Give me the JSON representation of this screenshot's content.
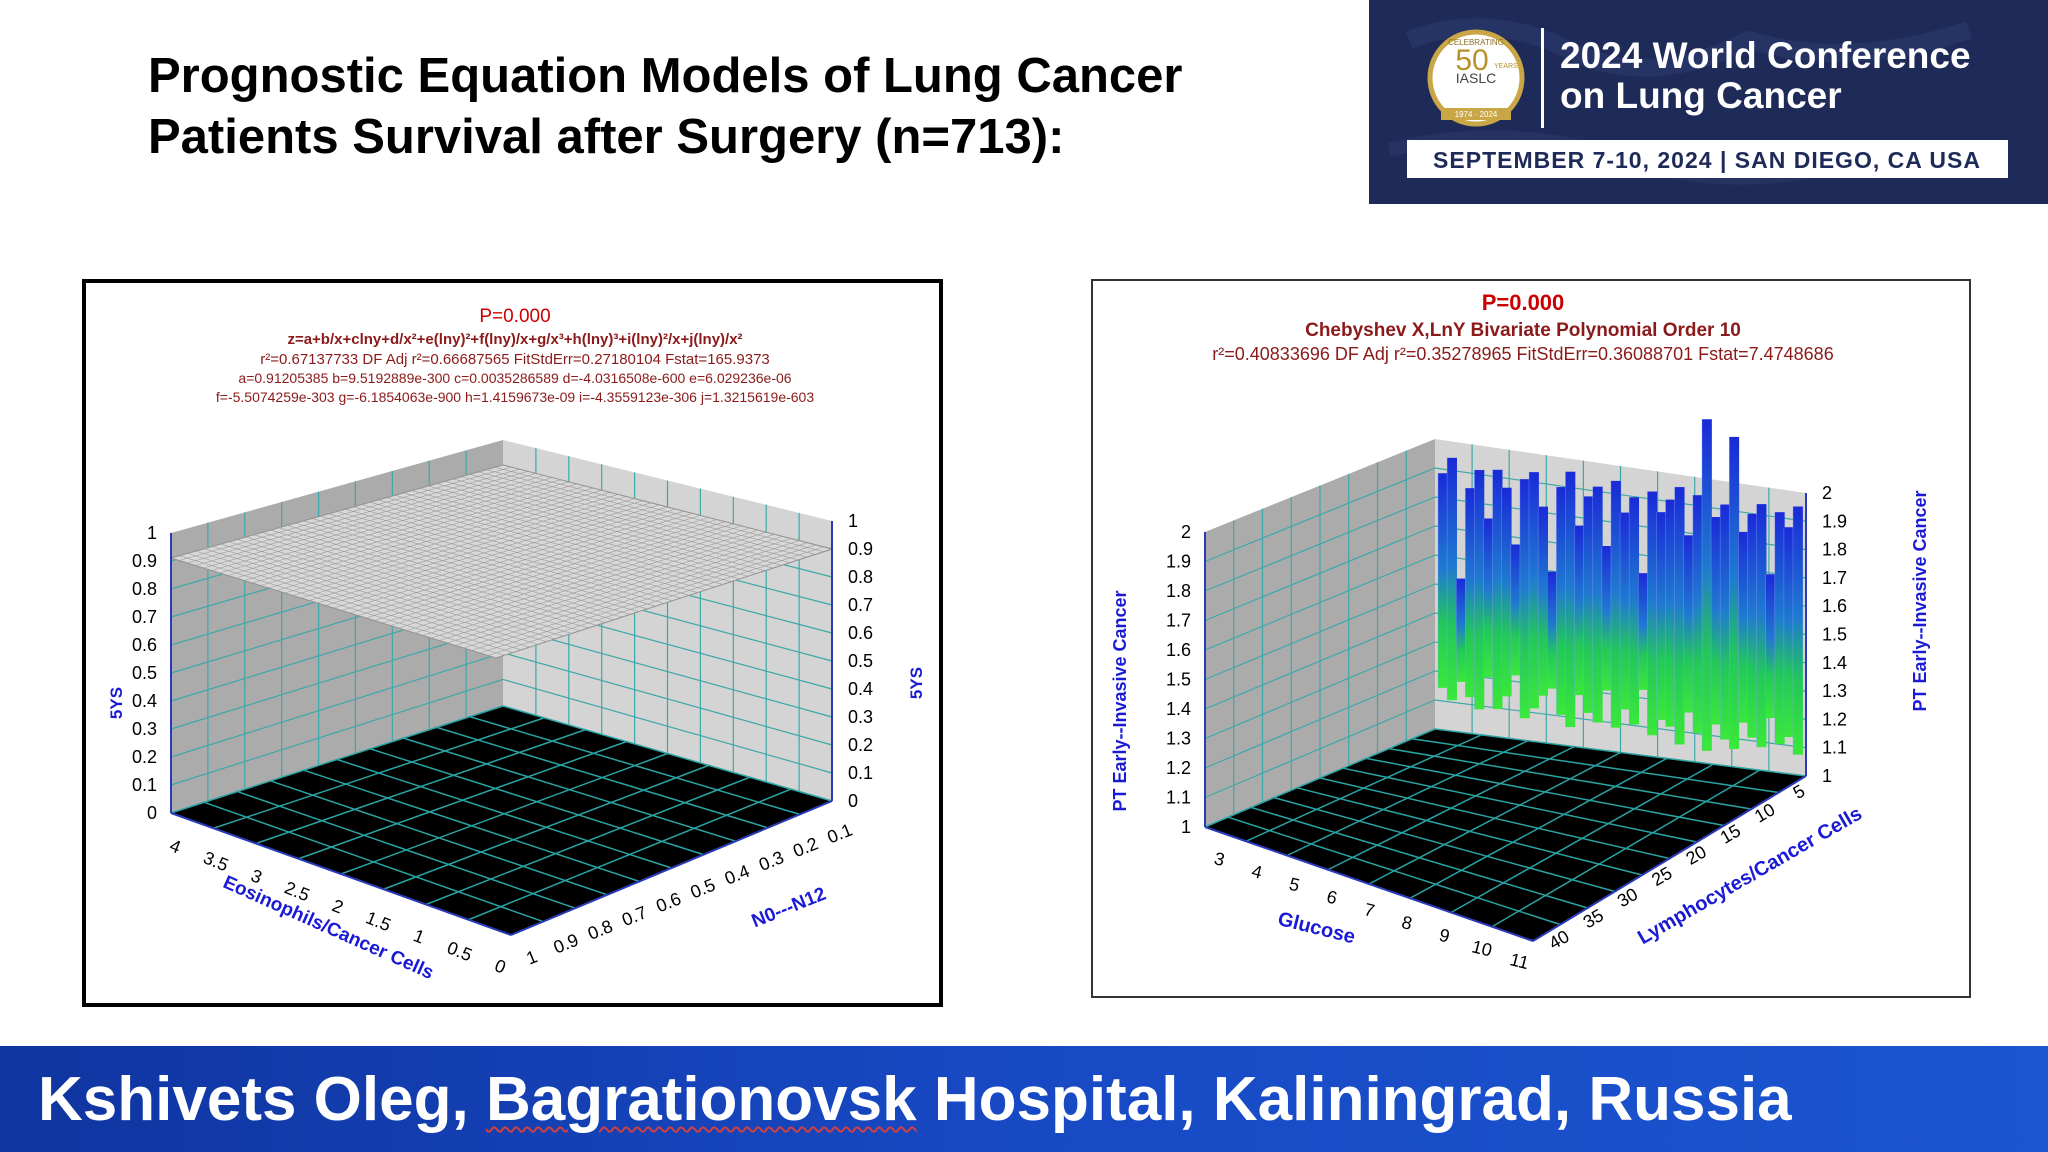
{
  "slide": {
    "title_line1": "Prognostic Equation Models of Lung Cancer",
    "title_line2": "Patients Survival after Surgery (n=713):",
    "footer_name": "Kshivets Oleg, ",
    "footer_hospital": "Bagrationovsk",
    "footer_rest": " Hospital, Kaliningrad, Russia"
  },
  "logo": {
    "badge_top": "CELEBRATING",
    "badge_number": "50",
    "badge_suffix": "YEARS",
    "badge_org": "IASLC",
    "badge_years": "1974 · 2024",
    "line1": "2024 World Conference",
    "line2": "on Lung Cancer",
    "dates": "SEPTEMBER 7-10, 2024 | SAN DIEGO, CA USA"
  },
  "colors": {
    "header_text": "#cc0000",
    "stats_text": "#8b1a1a",
    "axis_label": "#1a1ad6",
    "footer_blue": "#1849c4",
    "logo_navy": "#1e2a57",
    "grid_teal": "#2aa3a3"
  },
  "chart_data": [
    {
      "type": "surface",
      "header": "P=0.000",
      "equation": "z=a+b/x+clny+d/x²+e(lny)²+f(lny)/x+g/x³+h(lny)³+i(lny)²/x+j(lny)/x²",
      "stats": "r²=0.67137733 DF Adj r²=0.66687565 FitStdErr=0.27180104 Fstat=165.9373",
      "coef1": "a=0.91205385 b=9.5192889e-300 c=0.0035286589 d=-4.0316508e-600 e=6.029236e-06",
      "coef2": "f=-5.5074259e-303 g=-6.1854063e-900 h=1.4159673e-09 i=-4.3559123e-306 j=1.3215619e-603",
      "xlabel": "Eosinophils/Cancer Cells",
      "ylabel": "N0---N12",
      "zlabel": "5YS",
      "x_ticks": [
        "4",
        "3.5",
        "3",
        "2.5",
        "2",
        "1.5",
        "1",
        "0.5",
        "0"
      ],
      "y_ticks": [
        "1",
        "0.9",
        "0.8",
        "0.7",
        "0.6",
        "0.5",
        "0.4",
        "0.3",
        "0.2",
        "0.1"
      ],
      "z_ticks": [
        "0",
        "0.1",
        "0.2",
        "0.3",
        "0.4",
        "0.5",
        "0.6",
        "0.7",
        "0.8",
        "0.9",
        "1"
      ],
      "zlim": [
        0,
        1
      ],
      "surface_z": 0.91
    },
    {
      "type": "surface",
      "header": "P=0.000",
      "equation": "Chebyshev X,LnY Bivariate Polynomial Order 10",
      "stats": "r²=0.40833696 DF Adj r²=0.35278965 FitStdErr=0.36088701 Fstat=7.4748686",
      "xlabel": "Glucose",
      "ylabel": "Lymphocytes/Cancer Cells",
      "zlabel": "PT Early--Invasive Cancer",
      "x_ticks": [
        "3",
        "4",
        "5",
        "6",
        "7",
        "8",
        "9",
        "10",
        "11"
      ],
      "y_ticks": [
        "40",
        "35",
        "30",
        "25",
        "20",
        "15",
        "10",
        "5"
      ],
      "z_ticks": [
        "1",
        "1.1",
        "1.2",
        "1.3",
        "1.4",
        "1.5",
        "1.6",
        "1.7",
        "1.8",
        "1.9",
        "2"
      ],
      "zlim": [
        1,
        2
      ]
    }
  ]
}
